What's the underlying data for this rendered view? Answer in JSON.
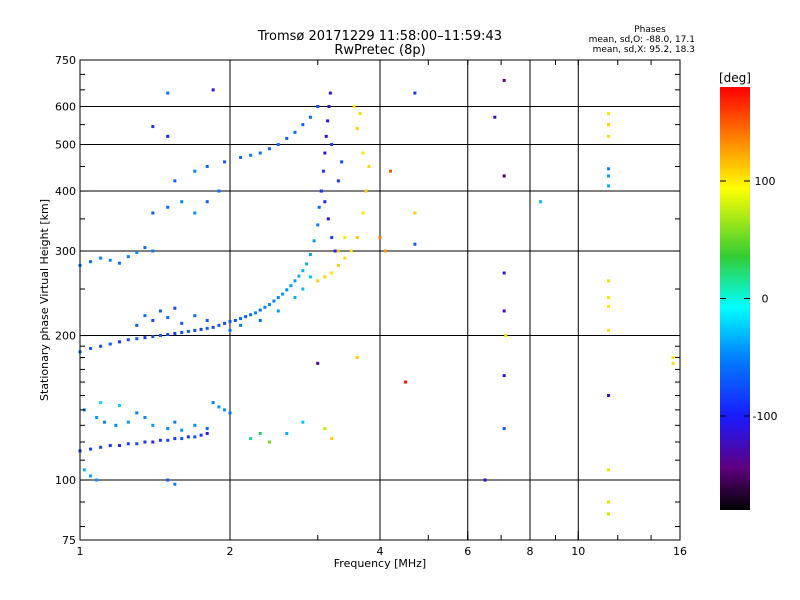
{
  "header": {
    "title_line1": "Tromsø 20171229 11:58:00–11:59:43",
    "title_line2": "RwPretec (8p)"
  },
  "phases_box": {
    "heading": "Phases",
    "line_o": "mean, sd,O: -88.0, 17.1",
    "line_x": "mean, sd,X:  95.2, 18.3"
  },
  "colorbar": {
    "unit": "[deg]",
    "tick_labels": [
      "100",
      "0",
      "-100"
    ],
    "tick_values": [
      100,
      0,
      -100
    ],
    "range": [
      -180,
      180
    ]
  },
  "chart_data": {
    "type": "scatter",
    "title": "Tromsø 20171229 11:58:00–11:59:43",
    "subtitle": "RwPretec (8p)",
    "xlabel": "Frequency [MHz]",
    "ylabel": "Stationary phase Virtual Height [km]",
    "xscale": "log",
    "yscale": "log",
    "xlim": [
      1,
      16
    ],
    "ylim": [
      75,
      750
    ],
    "x_ticks": [
      1,
      2,
      4,
      6,
      8,
      10,
      16
    ],
    "x_tick_labels": [
      "1",
      "2",
      "4",
      "6",
      "8",
      "10",
      "16"
    ],
    "y_ticks": [
      75,
      100,
      200,
      300,
      400,
      500,
      600,
      750
    ],
    "y_tick_labels": [
      "75",
      "100",
      "200",
      "300",
      "400",
      "500",
      "600",
      "750"
    ],
    "x_grid": [
      2,
      4,
      6,
      8,
      10
    ],
    "y_grid": [
      100,
      200,
      300,
      400,
      500,
      600
    ],
    "color_scale": "phase",
    "series": [
      {
        "points": [
          [
            1.0,
            115,
            -95
          ],
          [
            1.05,
            116,
            -100
          ],
          [
            1.1,
            117,
            -95
          ],
          [
            1.15,
            118,
            -100
          ],
          [
            1.2,
            118,
            -105
          ],
          [
            1.25,
            119,
            -100
          ],
          [
            1.3,
            119,
            -95
          ],
          [
            1.35,
            120,
            -100
          ],
          [
            1.4,
            120,
            -105
          ],
          [
            1.45,
            121,
            -100
          ],
          [
            1.5,
            121,
            -95
          ],
          [
            1.55,
            122,
            -100
          ],
          [
            1.6,
            122,
            -90
          ],
          [
            1.65,
            123,
            -100
          ],
          [
            1.7,
            123,
            -95
          ],
          [
            1.75,
            124,
            -100
          ],
          [
            1.8,
            125,
            -110
          ],
          [
            1.02,
            140,
            -75
          ],
          [
            1.08,
            135,
            -70
          ],
          [
            1.12,
            132,
            -80
          ],
          [
            1.18,
            130,
            -75
          ],
          [
            1.25,
            132,
            -70
          ],
          [
            1.3,
            138,
            -80
          ],
          [
            1.35,
            135,
            -75
          ],
          [
            1.4,
            130,
            -70
          ],
          [
            1.5,
            128,
            -75
          ],
          [
            1.55,
            132,
            -80
          ],
          [
            1.6,
            127,
            -70
          ],
          [
            1.7,
            130,
            -75
          ],
          [
            1.8,
            128,
            -85
          ],
          [
            1.85,
            145,
            -80
          ],
          [
            1.9,
            142,
            -70
          ],
          [
            1.95,
            140,
            -75
          ],
          [
            2.0,
            138,
            -85
          ],
          [
            1.02,
            105,
            -60
          ],
          [
            1.05,
            102,
            -65
          ],
          [
            1.08,
            100,
            -70
          ],
          [
            1.5,
            100,
            -90
          ],
          [
            1.55,
            98,
            -80
          ],
          [
            1.1,
            145,
            -40
          ],
          [
            1.2,
            143,
            -45
          ],
          [
            2.2,
            122,
            -20
          ],
          [
            2.3,
            125,
            -10
          ],
          [
            2.4,
            120,
            30
          ],
          [
            2.6,
            125,
            -60
          ],
          [
            2.8,
            132,
            -50
          ],
          [
            3.1,
            128,
            60
          ],
          [
            3.2,
            122,
            120
          ],
          [
            1.0,
            185,
            -85
          ],
          [
            1.05,
            188,
            -90
          ],
          [
            1.1,
            190,
            -95
          ],
          [
            1.15,
            192,
            -90
          ],
          [
            1.2,
            194,
            -100
          ],
          [
            1.25,
            196,
            -95
          ],
          [
            1.3,
            197,
            -90
          ],
          [
            1.35,
            198,
            -100
          ],
          [
            1.4,
            199,
            -95
          ],
          [
            1.45,
            200,
            -90
          ],
          [
            1.5,
            201,
            -95
          ],
          [
            1.55,
            202,
            -100
          ],
          [
            1.6,
            203,
            -95
          ],
          [
            1.65,
            204,
            -90
          ],
          [
            1.7,
            205,
            -95
          ],
          [
            1.75,
            206,
            -100
          ],
          [
            1.8,
            207,
            -90
          ],
          [
            1.85,
            208,
            -95
          ],
          [
            1.9,
            210,
            -90
          ],
          [
            1.95,
            212,
            -95
          ],
          [
            2.0,
            214,
            -90
          ],
          [
            2.05,
            215,
            -95
          ],
          [
            2.1,
            217,
            -85
          ],
          [
            2.15,
            219,
            -90
          ],
          [
            2.2,
            221,
            -85
          ],
          [
            2.25,
            223,
            -80
          ],
          [
            2.3,
            226,
            -85
          ],
          [
            2.35,
            229,
            -80
          ],
          [
            2.4,
            232,
            -75
          ],
          [
            2.45,
            236,
            -80
          ],
          [
            2.5,
            240,
            -75
          ],
          [
            2.55,
            244,
            -70
          ],
          [
            2.6,
            249,
            -75
          ],
          [
            2.65,
            254,
            -70
          ],
          [
            2.7,
            260,
            -65
          ],
          [
            2.75,
            266,
            -60
          ],
          [
            2.8,
            273,
            -55
          ],
          [
            2.85,
            282,
            -60
          ],
          [
            2.9,
            295,
            -65
          ],
          [
            2.95,
            315,
            -70
          ],
          [
            3.0,
            340,
            -80
          ],
          [
            3.02,
            370,
            -85
          ],
          [
            3.05,
            400,
            -90
          ],
          [
            3.08,
            440,
            -100
          ],
          [
            3.1,
            480,
            -110
          ],
          [
            3.12,
            520,
            -115
          ],
          [
            3.14,
            560,
            -110
          ],
          [
            3.16,
            600,
            -120
          ],
          [
            3.18,
            640,
            -115
          ],
          [
            1.3,
            210,
            -90
          ],
          [
            1.35,
            220,
            -85
          ],
          [
            1.4,
            215,
            -95
          ],
          [
            1.45,
            225,
            -90
          ],
          [
            1.5,
            218,
            -85
          ],
          [
            1.55,
            228,
            -95
          ],
          [
            1.6,
            212,
            -90
          ],
          [
            1.7,
            220,
            -85
          ],
          [
            1.8,
            215,
            -90
          ],
          [
            2.0,
            205,
            -85
          ],
          [
            2.1,
            210,
            -80
          ],
          [
            2.3,
            215,
            -85
          ],
          [
            2.5,
            225,
            -70
          ],
          [
            2.7,
            240,
            -60
          ],
          [
            2.8,
            250,
            -55
          ],
          [
            2.9,
            265,
            -50
          ],
          [
            1.0,
            280,
            -80
          ],
          [
            1.05,
            285,
            -85
          ],
          [
            1.1,
            290,
            -80
          ],
          [
            1.15,
            287,
            -75
          ],
          [
            1.2,
            283,
            -85
          ],
          [
            1.25,
            292,
            -80
          ],
          [
            1.3,
            298,
            -75
          ],
          [
            1.35,
            305,
            -85
          ],
          [
            1.4,
            300,
            -80
          ],
          [
            1.4,
            360,
            -90
          ],
          [
            1.5,
            370,
            -85
          ],
          [
            1.6,
            380,
            -80
          ],
          [
            1.7,
            360,
            -75
          ],
          [
            1.8,
            380,
            -90
          ],
          [
            1.9,
            400,
            -85
          ],
          [
            1.55,
            420,
            -90
          ],
          [
            1.7,
            440,
            -80
          ],
          [
            1.8,
            450,
            -85
          ],
          [
            1.95,
            460,
            -90
          ],
          [
            2.1,
            470,
            -85
          ],
          [
            2.2,
            475,
            -80
          ],
          [
            2.3,
            480,
            -85
          ],
          [
            2.4,
            490,
            -90
          ],
          [
            2.5,
            500,
            -85
          ],
          [
            2.6,
            515,
            -90
          ],
          [
            2.7,
            530,
            -85
          ],
          [
            2.8,
            550,
            -90
          ],
          [
            2.9,
            570,
            -85
          ],
          [
            3.0,
            600,
            -95
          ],
          [
            1.5,
            640,
            -85
          ],
          [
            1.85,
            650,
            -110
          ],
          [
            1.4,
            545,
            -100
          ],
          [
            1.5,
            520,
            -105
          ],
          [
            3.0,
            260,
            120
          ],
          [
            3.1,
            265,
            115
          ],
          [
            3.2,
            270,
            110
          ],
          [
            3.3,
            280,
            120
          ],
          [
            3.4,
            290,
            115
          ],
          [
            3.5,
            300,
            110
          ],
          [
            3.6,
            320,
            120
          ],
          [
            3.7,
            360,
            110
          ],
          [
            3.75,
            400,
            120
          ],
          [
            3.8,
            450,
            115
          ],
          [
            3.7,
            480,
            110
          ],
          [
            3.6,
            540,
            120
          ],
          [
            3.65,
            580,
            115
          ],
          [
            3.55,
            600,
            110
          ],
          [
            3.3,
            300,
            125
          ],
          [
            3.4,
            320,
            110
          ],
          [
            3.05,
            400,
            -100
          ],
          [
            3.1,
            380,
            -105
          ],
          [
            3.15,
            350,
            -110
          ],
          [
            3.2,
            320,
            -100
          ],
          [
            3.25,
            300,
            -105
          ],
          [
            3.3,
            420,
            -100
          ],
          [
            3.35,
            460,
            -95
          ],
          [
            3.2,
            500,
            -100
          ],
          [
            4.0,
            320,
            150
          ],
          [
            4.1,
            300,
            140
          ],
          [
            4.2,
            440,
            160
          ],
          [
            4.5,
            160,
            175
          ],
          [
            4.7,
            360,
            120
          ],
          [
            4.7,
            310,
            -90
          ],
          [
            4.7,
            640,
            -100
          ],
          [
            3.0,
            175,
            -130
          ],
          [
            3.6,
            180,
            120
          ],
          [
            6.5,
            100,
            -120
          ],
          [
            6.8,
            570,
            -120
          ],
          [
            7.1,
            680,
            -140
          ],
          [
            7.1,
            430,
            -150
          ],
          [
            7.1,
            270,
            -110
          ],
          [
            7.1,
            225,
            -120
          ],
          [
            7.1,
            165,
            -110
          ],
          [
            7.1,
            128,
            -90
          ],
          [
            7.15,
            200,
            100
          ],
          [
            8.4,
            380,
            -55
          ],
          [
            11.5,
            580,
            110
          ],
          [
            11.5,
            550,
            120
          ],
          [
            11.5,
            520,
            100
          ],
          [
            11.5,
            445,
            -80
          ],
          [
            11.5,
            430,
            -70
          ],
          [
            11.5,
            410,
            -60
          ],
          [
            11.5,
            260,
            90
          ],
          [
            11.5,
            240,
            100
          ],
          [
            11.5,
            230,
            110
          ],
          [
            11.5,
            205,
            100
          ],
          [
            11.5,
            150,
            -120
          ],
          [
            11.5,
            105,
            90
          ],
          [
            11.5,
            90,
            80
          ],
          [
            11.5,
            85,
            70
          ],
          [
            15.5,
            180,
            110
          ],
          [
            15.5,
            175,
            100
          ]
        ]
      }
    ]
  }
}
